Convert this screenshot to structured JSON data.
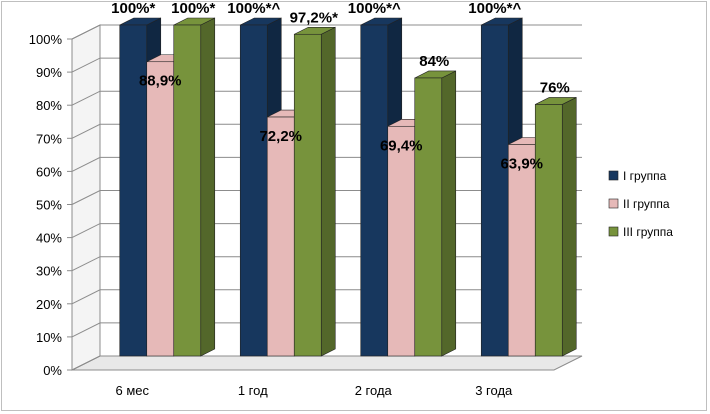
{
  "chart_data": {
    "type": "bar",
    "categories": [
      "6 мес",
      "1 год",
      "2 года",
      "3 года"
    ],
    "series": [
      {
        "name": "I группа",
        "values": [
          100,
          100,
          100,
          100
        ],
        "labels": [
          "100%*",
          "100%*^",
          "100%*^",
          "100%*^"
        ],
        "color": "#17375E"
      },
      {
        "name": "II группа",
        "values": [
          88.9,
          72.2,
          69.4,
          63.9
        ],
        "labels": [
          "88,9%",
          "72,2%",
          "69,4%",
          "63,9%"
        ],
        "color": "#E6B9B8"
      },
      {
        "name": "III группа",
        "values": [
          100,
          97.2,
          84,
          76
        ],
        "labels": [
          "100%*",
          "97,2%*",
          "84%",
          "76%"
        ],
        "color": "#77933C"
      }
    ],
    "yticks": [
      "0%",
      "10%",
      "20%",
      "30%",
      "40%",
      "50%",
      "60%",
      "70%",
      "80%",
      "90%",
      "100%"
    ],
    "ylim": [
      0,
      100
    ],
    "grid": true,
    "legend": "right",
    "style": "3d-bar"
  }
}
